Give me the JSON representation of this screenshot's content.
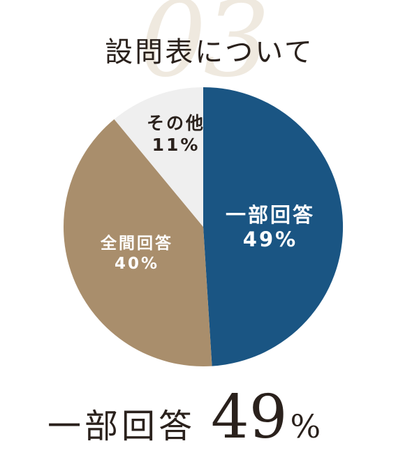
{
  "background_number": "03",
  "title": "設問表について",
  "summary": {
    "label": "一部回答",
    "value": "49",
    "unit": "%"
  },
  "chart_data": {
    "type": "pie",
    "start": "12 o'clock, clockwise",
    "slices": [
      {
        "label": "一部回答",
        "value": 49,
        "value_label": "49%",
        "color": "#1a5583",
        "text_color": "#ffffff"
      },
      {
        "label": "全間回答",
        "value": 40,
        "value_label": "40%",
        "color": "#a98e6c",
        "text_color": "#ffffff"
      },
      {
        "label": "その他",
        "value": 11,
        "value_label": "11%",
        "color": "#efefef",
        "text_color": "#2a211c"
      }
    ]
  }
}
